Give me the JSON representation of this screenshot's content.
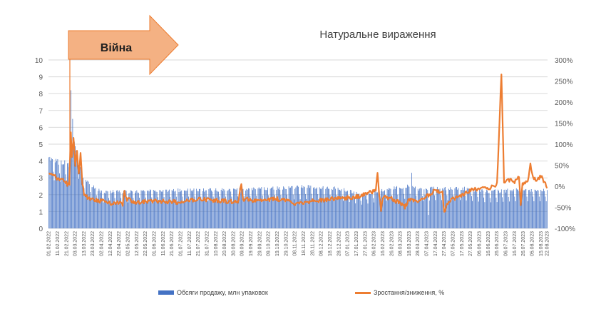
{
  "title": "Натуральне вираження",
  "annotation": "Війна",
  "colors": {
    "bars": "#4472c4",
    "line": "#ed7d31",
    "arrow": "#f4b183",
    "arrow_stroke": "#ed7d31",
    "grid": "#d9d9d9"
  },
  "legend": {
    "bars_label": "Обсяги продажу, млн упаковок",
    "line_label": "Зростання/зниження, %"
  },
  "chart_data": {
    "type": "bar+line",
    "title": "Натуральне вираження",
    "y_left": {
      "min": 0,
      "max": 10,
      "ticks": [
        "0",
        "1",
        "2",
        "3",
        "4",
        "5",
        "6",
        "7",
        "8",
        "9",
        "10"
      ]
    },
    "y_right": {
      "min": -100,
      "max": 300,
      "ticks": [
        "-100%",
        "-50%",
        "0%",
        "50%",
        "100%",
        "150%",
        "200%",
        "250%",
        "300%"
      ]
    },
    "x_start": "01.02.2022",
    "x_end": "22.08.2023",
    "x_tick_labels": [
      "01.02.2022",
      "11.02.2022",
      "21.02.2022",
      "03.03.2022",
      "13.03.2022",
      "23.03.2022",
      "02.04.2022",
      "12.04.2022",
      "22.04.2022",
      "02.05.2022",
      "12.05.2022",
      "22.05.2022",
      "01.06.2022",
      "11.06.2022",
      "21.06.2022",
      "01.07.2022",
      "11.07.2022",
      "21.07.2022",
      "31.07.2022",
      "10.08.2022",
      "20.08.2022",
      "30.08.2022",
      "09.09.2022",
      "19.09.2022",
      "29.09.2022",
      "09.10.2022",
      "19.10.2022",
      "29.10.2022",
      "08.11.2022",
      "18.11.2022",
      "28.11.2022",
      "08.12.2022",
      "18.12.2022",
      "28.12.2022",
      "07.01.2023",
      "17.01.2023",
      "27.01.2023",
      "06.02.2023",
      "16.02.2023",
      "26.02.2023",
      "08.03.2023",
      "18.03.2023",
      "28.03.2023",
      "07.04.2023",
      "17.04.2023",
      "27.04.2023",
      "07.05.2023",
      "17.05.2023",
      "27.05.2023",
      "06.06.2023",
      "16.06.2023",
      "26.06.2023",
      "06.07.2023",
      "16.07.2023",
      "26.07.2023",
      "05.08.2023",
      "15.08.2023",
      "22.08.2023"
    ],
    "series": [
      {
        "name": "Обсяги продажу, млн упаковок",
        "type": "bar",
        "axis": "left",
        "keypoints": [
          [
            0,
            4.2
          ],
          [
            10,
            4.0
          ],
          [
            20,
            3.9
          ],
          [
            24,
            3.8
          ],
          [
            25,
            6.8
          ],
          [
            26,
            5.6
          ],
          [
            30,
            5.0
          ],
          [
            34,
            4.2
          ],
          [
            38,
            3.0
          ],
          [
            45,
            2.7
          ],
          [
            60,
            2.2
          ],
          [
            90,
            2.2
          ],
          [
            150,
            2.3
          ],
          [
            210,
            2.3
          ],
          [
            250,
            2.4
          ],
          [
            300,
            2.5
          ],
          [
            330,
            2.4
          ],
          [
            345,
            2.2
          ],
          [
            355,
            2.0
          ],
          [
            370,
            2.2
          ],
          [
            390,
            2.4
          ],
          [
            405,
            2.5
          ],
          [
            413,
            2.5
          ],
          [
            420,
            2.3
          ],
          [
            440,
            2.4
          ],
          [
            470,
            2.4
          ],
          [
            500,
            2.2
          ],
          [
            530,
            2.3
          ],
          [
            567,
            2.3
          ]
        ],
        "spikes": [
          [
            25,
            8.2
          ],
          [
            27,
            6.5
          ],
          [
            413,
            3.3
          ],
          [
            428,
            2.0
          ],
          [
            432,
            0.8
          ]
        ]
      },
      {
        "name": "Зростання/зниження, %",
        "type": "line",
        "axis": "right",
        "keypoints": [
          [
            0,
            30
          ],
          [
            5,
            25
          ],
          [
            10,
            18
          ],
          [
            15,
            15
          ],
          [
            20,
            8
          ],
          [
            23,
            0
          ],
          [
            25,
            130
          ],
          [
            26,
            70
          ],
          [
            28,
            110
          ],
          [
            30,
            50
          ],
          [
            32,
            80
          ],
          [
            34,
            30
          ],
          [
            36,
            75
          ],
          [
            38,
            10
          ],
          [
            40,
            -20
          ],
          [
            45,
            -30
          ],
          [
            60,
            -35
          ],
          [
            70,
            -40
          ],
          [
            80,
            -38
          ],
          [
            84,
            -45
          ],
          [
            86,
            -10
          ],
          [
            88,
            -30
          ],
          [
            100,
            -38
          ],
          [
            120,
            -35
          ],
          [
            150,
            -38
          ],
          [
            170,
            -30
          ],
          [
            200,
            -35
          ],
          [
            215,
            -38
          ],
          [
            219,
            5
          ],
          [
            221,
            -30
          ],
          [
            240,
            -35
          ],
          [
            260,
            -30
          ],
          [
            280,
            -40
          ],
          [
            300,
            -35
          ],
          [
            320,
            -30
          ],
          [
            350,
            -25
          ],
          [
            360,
            -20
          ],
          [
            372,
            -10
          ],
          [
            374,
            30
          ],
          [
            376,
            -20
          ],
          [
            378,
            -55
          ],
          [
            380,
            -25
          ],
          [
            390,
            -30
          ],
          [
            400,
            -40
          ],
          [
            405,
            -50
          ],
          [
            410,
            -30
          ],
          [
            420,
            -35
          ],
          [
            440,
            -10
          ],
          [
            448,
            -15
          ],
          [
            450,
            -65
          ],
          [
            452,
            -45
          ],
          [
            460,
            -30
          ],
          [
            470,
            -20
          ],
          [
            480,
            -10
          ],
          [
            490,
            -5
          ],
          [
            498,
            -5
          ],
          [
            500,
            -10
          ],
          [
            505,
            0
          ],
          [
            510,
            5
          ],
          [
            515,
            270
          ],
          [
            518,
            10
          ],
          [
            525,
            15
          ],
          [
            530,
            10
          ],
          [
            535,
            20
          ],
          [
            537,
            -45
          ],
          [
            539,
            5
          ],
          [
            545,
            15
          ],
          [
            548,
            50
          ],
          [
            551,
            20
          ],
          [
            555,
            15
          ],
          [
            560,
            25
          ],
          [
            565,
            5
          ],
          [
            567,
            0
          ]
        ]
      }
    ]
  }
}
